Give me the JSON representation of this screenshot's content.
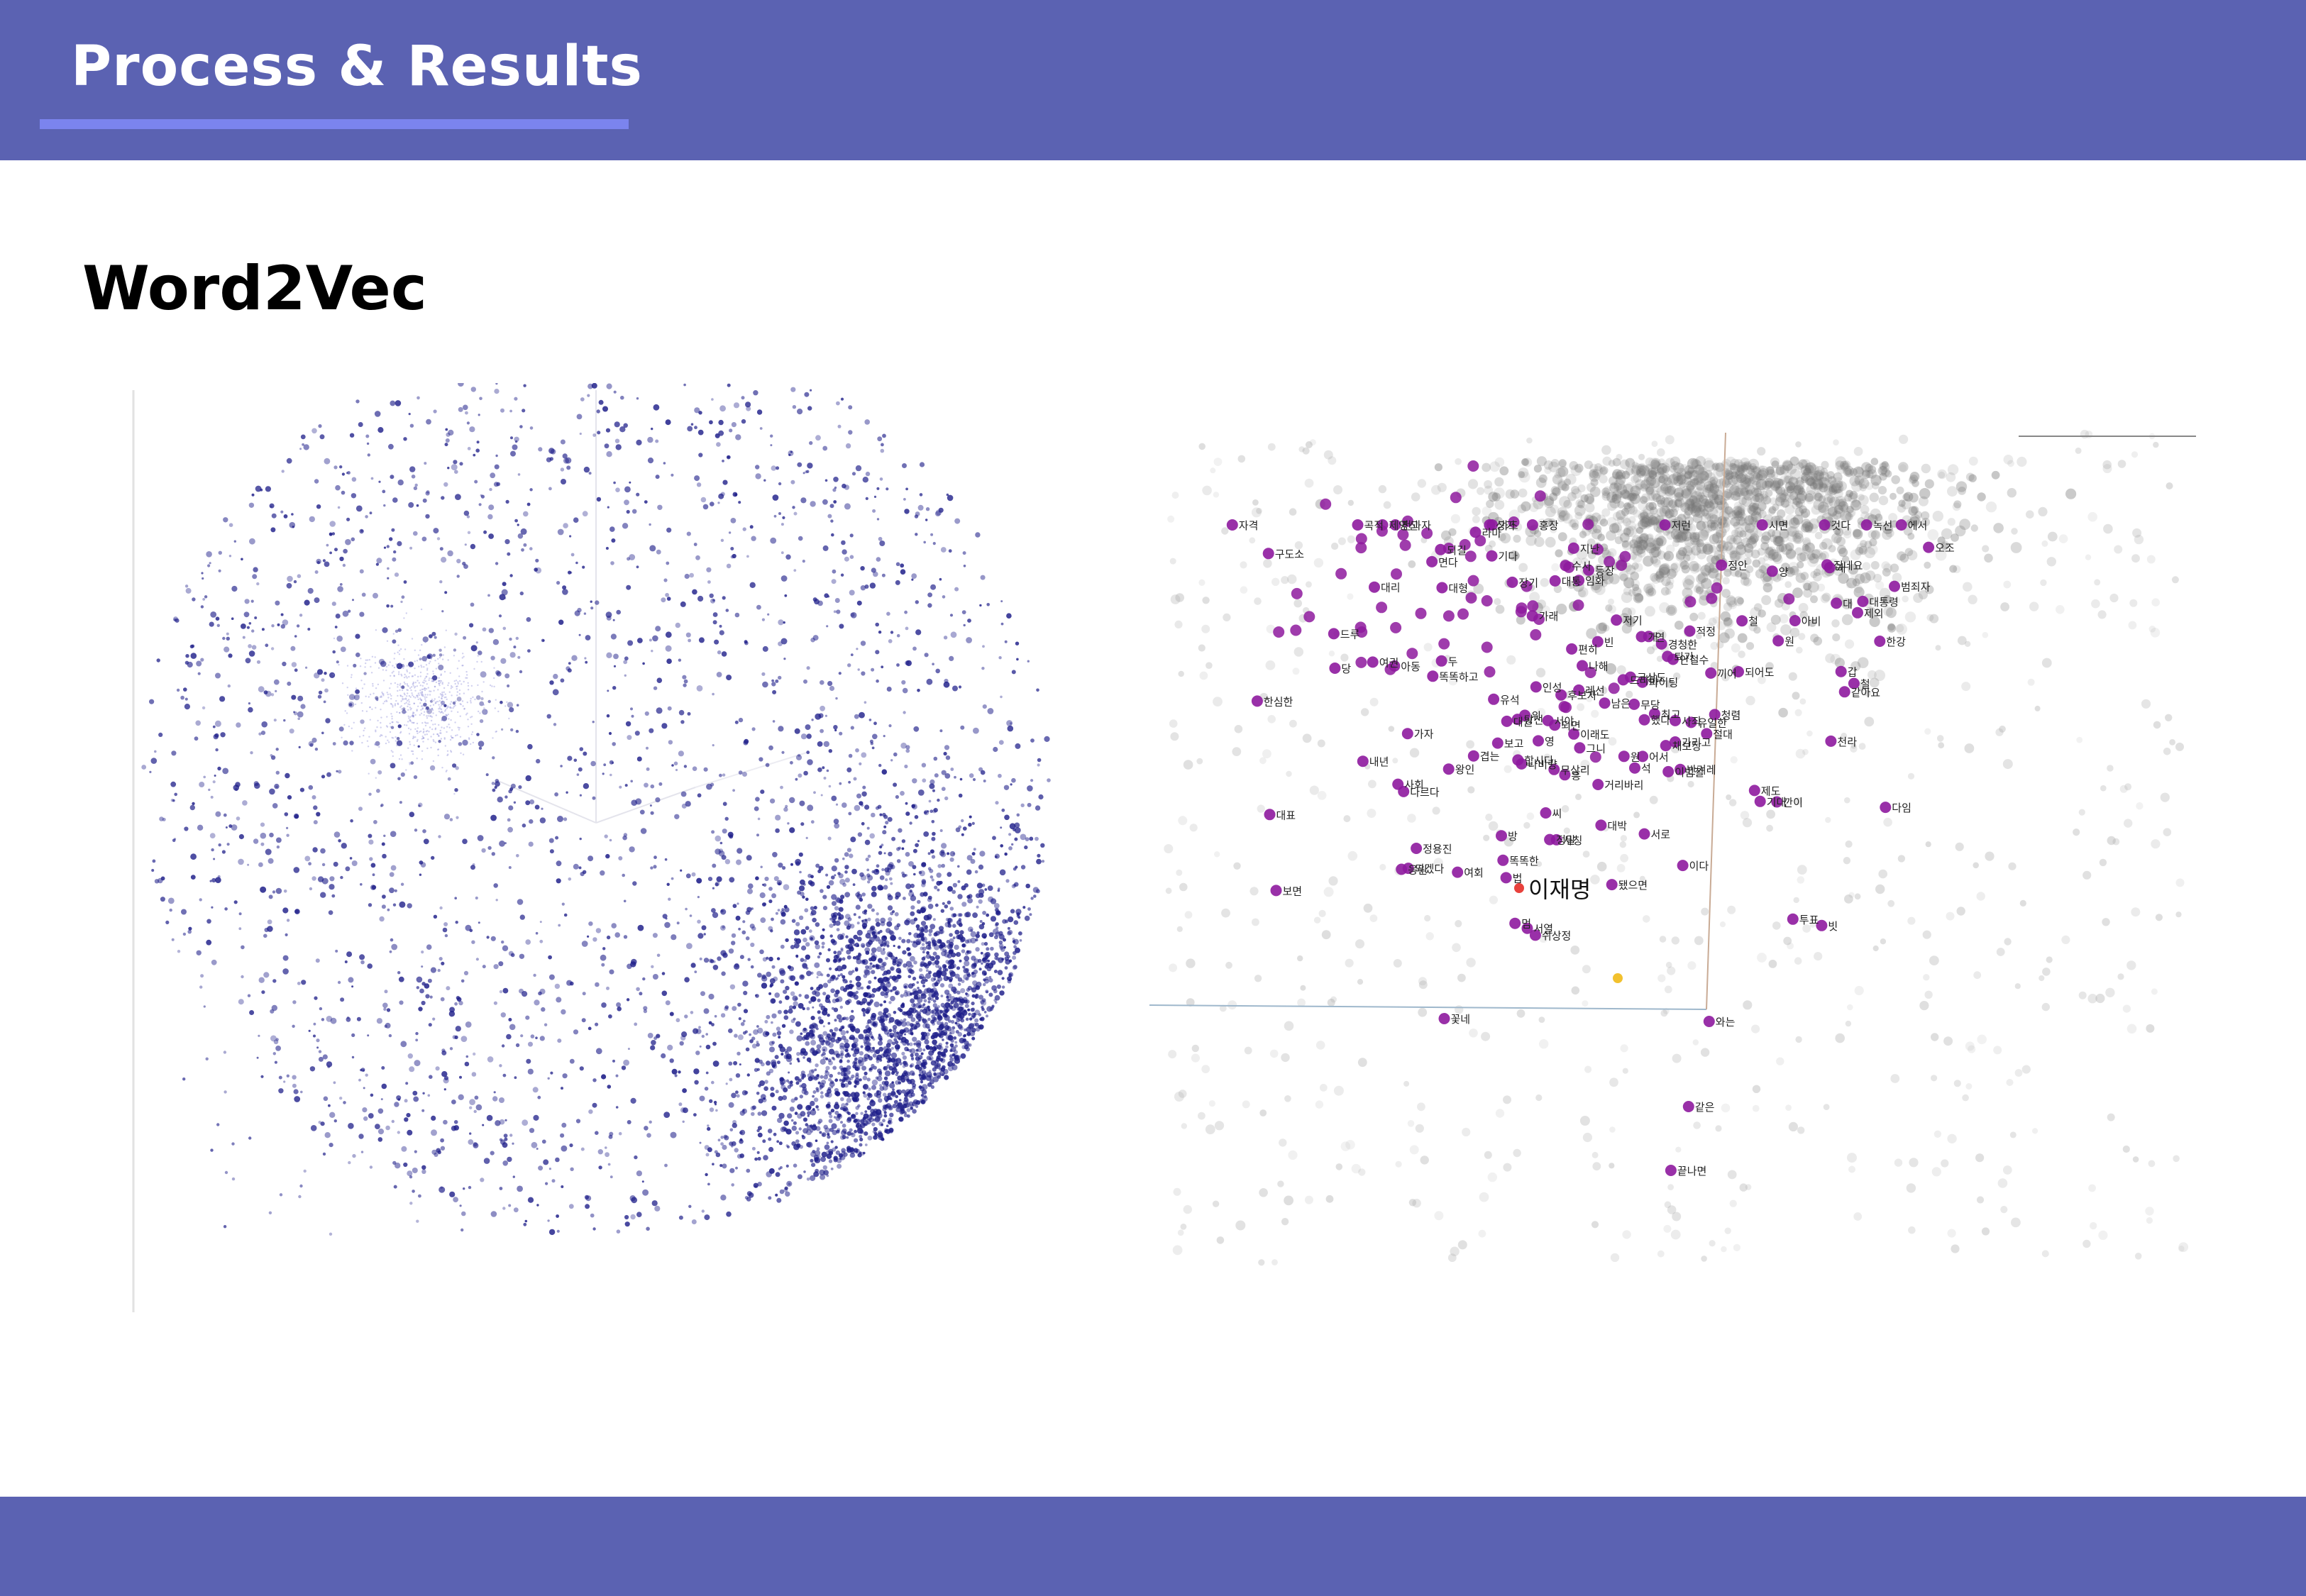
{
  "header": {
    "title": "Process & Results"
  },
  "section": {
    "title": "Word2Vec"
  },
  "colors": {
    "header_bg": "#5b62b2",
    "header_accent": "#7b84ee",
    "footer_bg": "#5b62b2",
    "point_blue": "#1f1f8a",
    "point_purple": "#8e1a9e",
    "point_gray": "#777777",
    "highlight_red": "#e8413c",
    "highlight_yellow": "#f2c12e"
  },
  "left_plot": {
    "description_type": "3d-scatter-embedding"
  },
  "right_plot": {
    "highlight_word": "이재명",
    "words": [
      "반겨레",
      "정안",
      "아비",
      "채보장",
      "이범철",
      "등장",
      "석",
      "대",
      "나비량",
      "무상리",
      "이래도",
      "경청한",
      "철",
      "드루",
      "구도소",
      "제영신",
      "영",
      "제외",
      "방",
      "퇴기",
      "상가",
      "서열",
      "아동",
      "한심한",
      "라마",
      "정용진",
      "되어도",
      "개",
      "원",
      "최고",
      "빈",
      "개",
      "대형",
      "인성",
      "가리고",
      "전과자",
      "수사",
      "국상도",
      "내년",
      "무당",
      "범죄자",
      "드라마",
      "왕인",
      "편히",
      "철",
      "두",
      "여회",
      "대박",
      "것다",
      "꽃네",
      "서로",
      "지난",
      "면다",
      "적정",
      "연",
      "위",
      "기다",
      "가자",
      "천라",
      "제도",
      "후보자",
      "대권",
      "보면",
      "저런",
      "양",
      "남은",
      "여권",
      "에서",
      "법",
      "대표",
      "다임",
      "나해",
      "사칭",
      "보고",
      "거리바리",
      "다르다",
      "청렴",
      "기대",
      "투표",
      "한강",
      "가래",
      "했다",
      "어서",
      "장기",
      "서야",
      "그니",
      "이다",
      "절대",
      "집네요",
      "정말",
      "씨",
      "쉬상정",
      "사죄",
      "사회",
      "대통",
      "끼어",
      "같아요",
      "유일한",
      "자격",
      "녹선",
      "똑똑하고",
      "당",
      "홍장",
      "합시다",
      "파이팅",
      "응원",
      "되길",
      "겹는",
      "오조",
      "대리",
      "곡적",
      "이재명",
      "당선",
      "유석",
      "됐으면",
      "시면",
      "임화",
      "원",
      "똑똑한",
      "갑",
      "빗",
      "깐이",
      "가즈",
      "되겠다",
      "멈",
      "되면",
      "흥",
      "안철수",
      "저기",
      "레선",
      "대통령",
      "끝나면",
      "와는",
      "같은"
    ]
  }
}
